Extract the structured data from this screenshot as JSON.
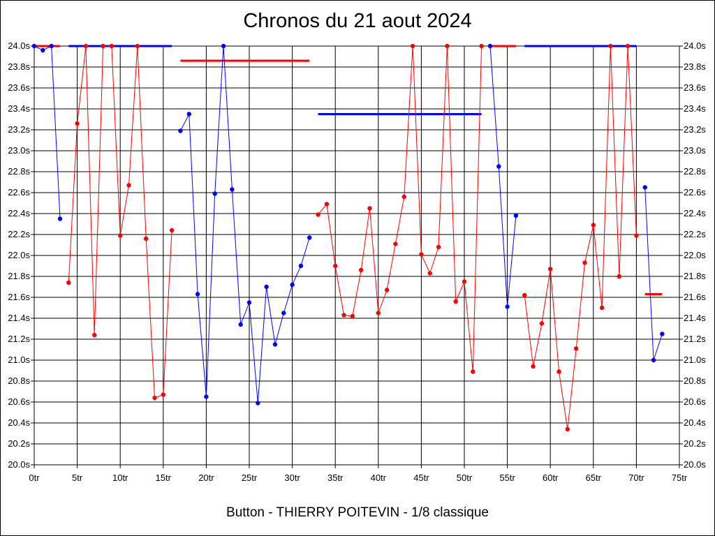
{
  "chart_data": {
    "type": "line",
    "title": "Chronos du 21 aout 2024",
    "footer": "Button - THIERRY POITEVIN - 1/8 classique",
    "x_range": [
      0,
      75
    ],
    "y_range": [
      20.0,
      24.0
    ],
    "x_ticks": [
      0,
      5,
      10,
      15,
      20,
      25,
      30,
      35,
      40,
      45,
      50,
      55,
      60,
      65,
      70,
      75
    ],
    "x_tick_labels": [
      "0tr",
      "5tr",
      "10tr",
      "15tr",
      "20tr",
      "25tr",
      "30tr",
      "35tr",
      "40tr",
      "45tr",
      "50tr",
      "55tr",
      "60tr",
      "65tr",
      "70tr",
      "75tr"
    ],
    "y_ticks": [
      20.0,
      20.2,
      20.4,
      20.6,
      20.8,
      21.0,
      21.2,
      21.4,
      21.6,
      21.8,
      22.0,
      22.2,
      22.4,
      22.6,
      22.8,
      23.0,
      23.2,
      23.4,
      23.6,
      23.8,
      24.0
    ],
    "y_tick_labels": [
      "20.0s",
      "20.2s",
      "20.4s",
      "20.6s",
      "20.8s",
      "21.0s",
      "21.2s",
      "21.4s",
      "21.6s",
      "21.8s",
      "22.0s",
      "22.2s",
      "22.4s",
      "22.6s",
      "22.8s",
      "23.0s",
      "23.2s",
      "23.4s",
      "23.6s",
      "23.8s",
      "24.0s"
    ],
    "grid": true,
    "colors": {
      "blue": "#0000ff",
      "red": "#ff0000"
    },
    "series": [
      {
        "color": "blue",
        "points": [
          [
            0,
            24.0
          ],
          [
            1,
            23.96
          ],
          [
            2,
            24.0
          ],
          [
            3,
            22.35
          ]
        ]
      },
      {
        "color": "red",
        "points": [
          [
            4,
            21.74
          ],
          [
            5,
            23.26
          ],
          [
            6,
            24.0
          ],
          [
            7,
            21.24
          ],
          [
            8,
            24.0
          ],
          [
            9,
            24.0
          ],
          [
            10,
            22.19
          ],
          [
            11,
            22.67
          ],
          [
            12,
            24.0
          ],
          [
            13,
            22.16
          ],
          [
            14,
            20.64
          ],
          [
            15,
            20.67
          ],
          [
            16,
            22.24
          ]
        ]
      },
      {
        "color": "blue",
        "points": [
          [
            17,
            23.19
          ],
          [
            18,
            23.35
          ],
          [
            19,
            21.63
          ],
          [
            20,
            20.65
          ],
          [
            21,
            22.59
          ],
          [
            22,
            24.0
          ],
          [
            23,
            22.63
          ],
          [
            24,
            21.34
          ],
          [
            25,
            21.55
          ],
          [
            26,
            20.59
          ],
          [
            27,
            21.7
          ],
          [
            28,
            21.15
          ],
          [
            29,
            21.45
          ],
          [
            30,
            21.72
          ],
          [
            31,
            21.9
          ],
          [
            32,
            22.17
          ]
        ]
      },
      {
        "color": "red",
        "points": [
          [
            33,
            22.39
          ],
          [
            34,
            22.49
          ],
          [
            35,
            21.9
          ],
          [
            36,
            21.43
          ],
          [
            37,
            21.42
          ],
          [
            38,
            21.86
          ],
          [
            39,
            22.45
          ],
          [
            40,
            21.45
          ],
          [
            41,
            21.67
          ],
          [
            42,
            22.11
          ],
          [
            43,
            22.56
          ],
          [
            44,
            24.0
          ],
          [
            45,
            22.01
          ],
          [
            46,
            21.83
          ],
          [
            47,
            22.08
          ],
          [
            48,
            24.0
          ],
          [
            49,
            21.56
          ],
          [
            50,
            21.75
          ],
          [
            51,
            20.89
          ],
          [
            52,
            24.0
          ]
        ]
      },
      {
        "color": "blue",
        "points": [
          [
            53,
            24.0
          ],
          [
            54,
            22.85
          ],
          [
            55,
            21.51
          ],
          [
            56,
            22.38
          ]
        ]
      },
      {
        "color": "red",
        "points": [
          [
            57,
            21.62
          ],
          [
            58,
            20.94
          ],
          [
            59,
            21.35
          ],
          [
            60,
            21.87
          ],
          [
            61,
            20.89
          ],
          [
            62,
            20.34
          ],
          [
            63,
            21.11
          ],
          [
            64,
            21.93
          ],
          [
            65,
            22.29
          ],
          [
            66,
            21.5
          ],
          [
            67,
            24.0
          ],
          [
            68,
            21.8
          ],
          [
            69,
            24.0
          ],
          [
            70,
            22.19
          ]
        ]
      },
      {
        "color": "blue",
        "points": [
          [
            71,
            22.65
          ],
          [
            72,
            21.0
          ],
          [
            73,
            21.25
          ]
        ]
      }
    ],
    "average_lines": [
      {
        "color": "red",
        "x": [
          0,
          3
        ],
        "y": 24.0
      },
      {
        "color": "blue",
        "x": [
          4,
          16
        ],
        "y": 24.0
      },
      {
        "color": "red",
        "x": [
          17,
          32
        ],
        "y": 23.86
      },
      {
        "color": "blue",
        "x": [
          33,
          52
        ],
        "y": 23.35
      },
      {
        "color": "red",
        "x": [
          53,
          56
        ],
        "y": 24.0
      },
      {
        "color": "blue",
        "x": [
          57,
          70
        ],
        "y": 24.0
      },
      {
        "color": "red",
        "x": [
          71,
          73
        ],
        "y": 21.63
      }
    ]
  }
}
